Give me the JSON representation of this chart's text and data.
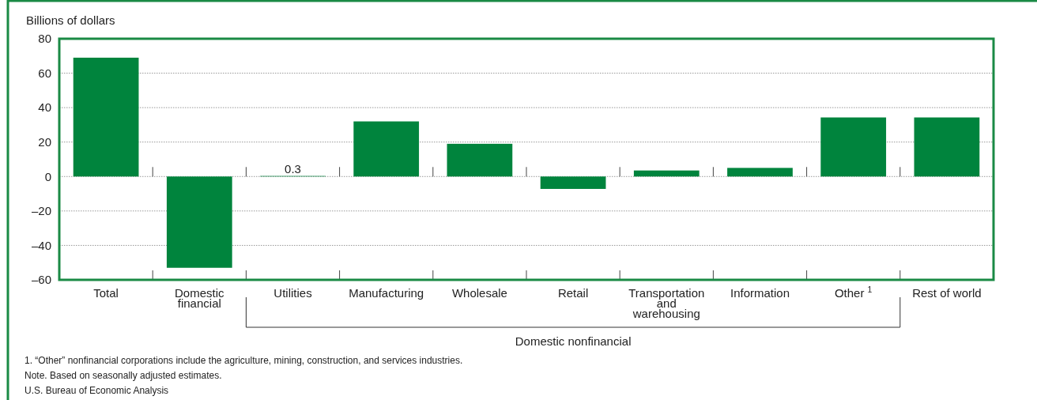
{
  "chart_data": {
    "type": "bar",
    "ylabel": "Billions of dollars",
    "categories": [
      "Total",
      "Domestic financial",
      "Utilities",
      "Manufacturing",
      "Wholesale",
      "Retail",
      "Transportation and warehousing",
      "Information",
      "Other $^{1}$",
      "Rest of world"
    ],
    "values": [
      69,
      -53,
      0.3,
      32,
      19,
      -7.2,
      3.5,
      5,
      34.3,
      34.3
    ],
    "value_labels": [
      null,
      null,
      "0.3",
      null,
      null,
      null,
      null,
      null,
      null,
      null
    ],
    "color": "#00843d",
    "ylim": [
      -60,
      80
    ],
    "yticks": [
      {
        "value": -60,
        "label": "–60"
      },
      {
        "value": -40,
        "label": "–40"
      },
      {
        "value": -20,
        "label": "–20"
      },
      0,
      20,
      40,
      60,
      80
    ],
    "grid": "y",
    "annotations": [
      "Domestic nonfinancial",
      "1. “Other” nonfinancial corporations include the agriculture, mining, construction, and services industries.",
      "Note. Based on seasonally adjusted estimates.",
      "U.S. Bureau of Economic Analysis"
    ]
  }
}
